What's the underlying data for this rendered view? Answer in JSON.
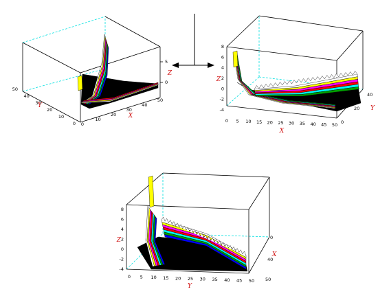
{
  "colors": {
    "band_sequence": [
      "#000000",
      "#0000ff",
      "#00a000",
      "#00ffff",
      "#ff0000",
      "#ff00ff",
      "#ffff00",
      "#ffffff"
    ],
    "axis_label": "#d01010",
    "hidden_edge": "#00e0e0"
  },
  "icons": [
    "double-arrow-icon"
  ],
  "panels": [
    {
      "id": "top-left",
      "x_label": "X",
      "y_label": "Y",
      "z_label": "Z",
      "x_ticks": [
        "0",
        "10",
        "20",
        "30",
        "40",
        "50"
      ],
      "y_ticks": [
        "0",
        "10",
        "20",
        "30",
        "40",
        "50"
      ],
      "z_ticks": [
        "0",
        "5"
      ]
    },
    {
      "id": "top-right",
      "x_label": "X",
      "y_label": "Y",
      "z_label": "Z",
      "x_ticks": [
        "0",
        "5",
        "10",
        "15",
        "20",
        "25",
        "30",
        "35",
        "40",
        "45",
        "50"
      ],
      "y_ticks": [
        "0",
        "20",
        "40"
      ],
      "z_ticks": [
        "-4",
        "-2",
        "0",
        "2",
        "4",
        "6",
        "8"
      ]
    },
    {
      "id": "bottom",
      "x_label": "X",
      "y_label": "Y",
      "z_label": "Z",
      "x_ticks": [
        "50",
        "40",
        "0"
      ],
      "y_ticks": [
        "0",
        "5",
        "10",
        "15",
        "20",
        "25",
        "30",
        "35",
        "40",
        "45",
        "50"
      ],
      "z_ticks": [
        "-4",
        "-2",
        "0",
        "2",
        "4",
        "6",
        "8"
      ]
    }
  ]
}
